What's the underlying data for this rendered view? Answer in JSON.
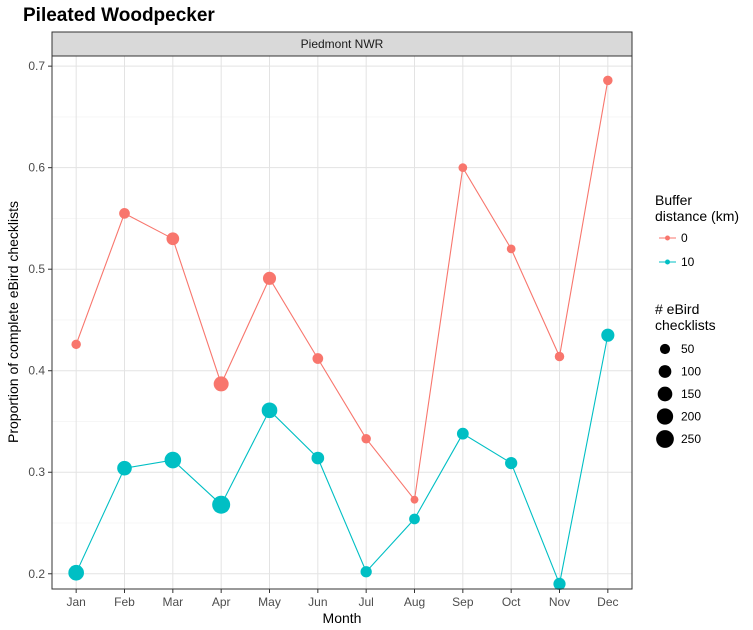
{
  "chart_data": {
    "type": "line",
    "title": "Pileated Woodpecker",
    "facet_label": "Piedmont NWR",
    "xlabel": "Month",
    "ylabel": "Proportion of complete eBird checklists",
    "categories": [
      "Jan",
      "Feb",
      "Mar",
      "Apr",
      "May",
      "Jun",
      "Jul",
      "Aug",
      "Sep",
      "Oct",
      "Nov",
      "Dec"
    ],
    "ylim": [
      0.185,
      0.71
    ],
    "yticks": [
      "0.2",
      "0.3",
      "0.4",
      "0.5",
      "0.6",
      "0.7"
    ],
    "ytick_values": [
      0.2,
      0.3,
      0.4,
      0.5,
      0.6,
      0.7
    ],
    "grid": true,
    "series": [
      {
        "name": "0",
        "color": "#F8766D",
        "values": [
          0.426,
          0.555,
          0.53,
          0.387,
          0.491,
          0.412,
          0.333,
          0.273,
          0.6,
          0.52,
          0.414,
          0.686
        ],
        "checklists": [
          40,
          60,
          100,
          160,
          110,
          60,
          40,
          20,
          30,
          30,
          40,
          40
        ]
      },
      {
        "name": "10",
        "color": "#00BFC4",
        "values": [
          0.201,
          0.304,
          0.312,
          0.268,
          0.361,
          0.314,
          0.202,
          0.254,
          0.338,
          0.309,
          0.19,
          0.435
        ],
        "checklists": [
          180,
          150,
          210,
          260,
          180,
          100,
          70,
          60,
          80,
          90,
          90,
          110
        ]
      }
    ],
    "legend": {
      "placement": "right",
      "color_title_line1": "Buffer",
      "color_title_line2": "distance (km)",
      "size_title_line1": "# eBird",
      "size_title_line2": "checklists",
      "size_breaks": [
        50,
        100,
        150,
        200,
        250
      ],
      "size_labels": [
        "50",
        "100",
        "150",
        "200",
        "250"
      ]
    }
  }
}
